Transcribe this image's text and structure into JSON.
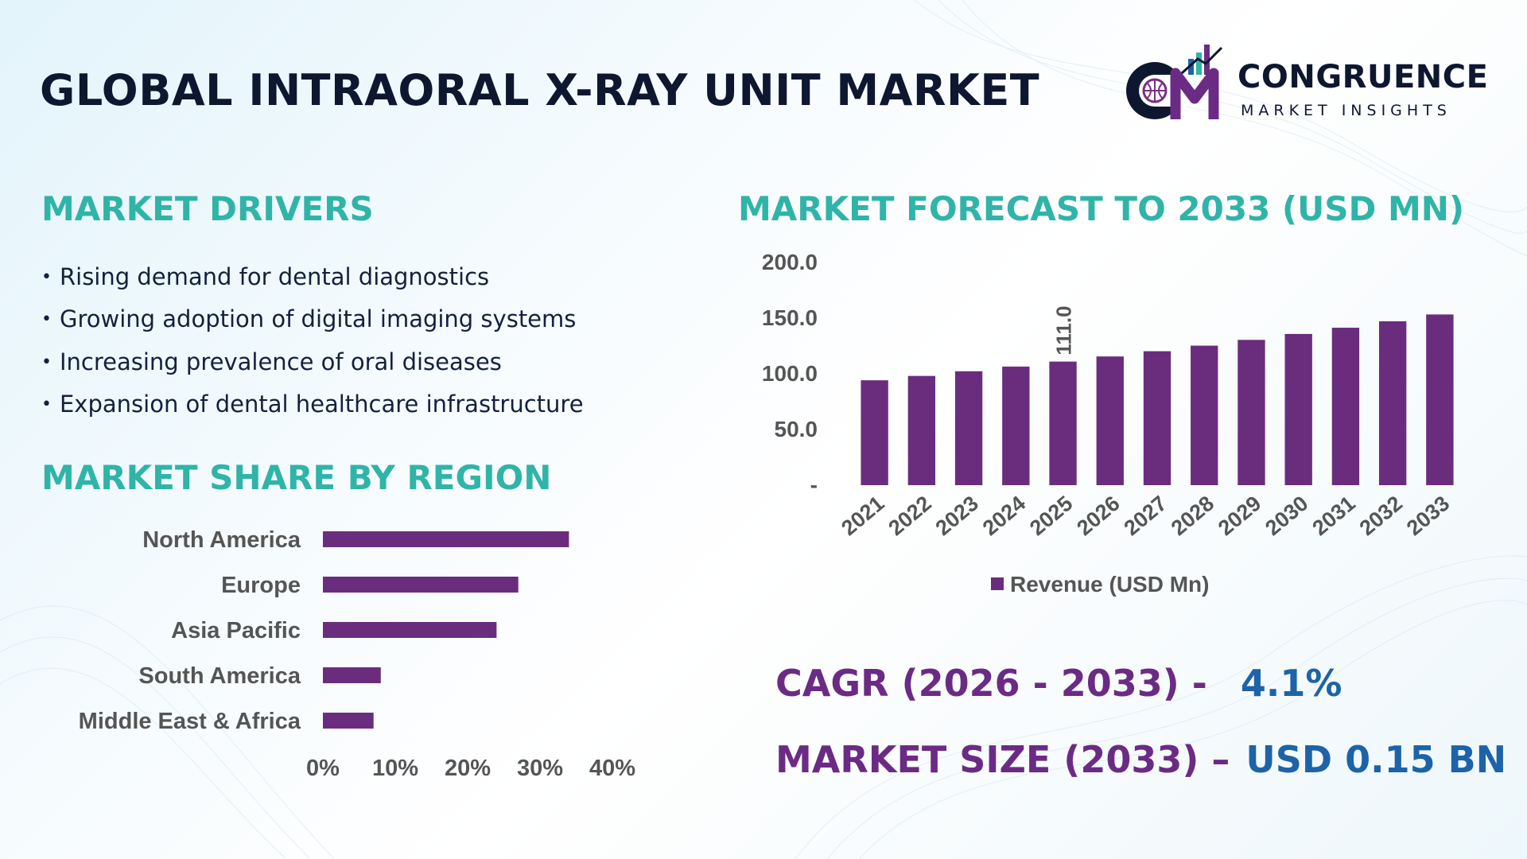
{
  "title": "GLOBAL INTRAORAL X-RAY UNIT MARKET",
  "logo": {
    "name": "CONGRUENCE",
    "tagline": "MARKET INSIGHTS",
    "mark": "CM"
  },
  "drivers": {
    "heading": "MARKET DRIVERS",
    "items": [
      "Rising demand for dental diagnostics",
      "Growing adoption of digital imaging systems",
      "Increasing prevalence of oral diseases",
      "Expansion of dental healthcare infrastructure"
    ]
  },
  "region": {
    "heading": "MARKET SHARE BY REGION"
  },
  "forecast": {
    "heading": "MARKET FORECAST TO 2033 (USD MN)"
  },
  "kpis": {
    "cagr_label": "CAGR (2026 - 2033) -",
    "cagr_value": "4.1%",
    "size_label": "MARKET SIZE (2033) –",
    "size_value": "USD 0.15 BN"
  },
  "colors": {
    "bar": "#6a2d7e",
    "heading": "#2fb4a8",
    "title": "#0d1730",
    "kpi_label": "#6b2b84",
    "kpi_value": "#1d63a8"
  },
  "chart_data": [
    {
      "type": "bar",
      "orientation": "vertical",
      "categories": [
        "2021",
        "2022",
        "2023",
        "2024",
        "2025",
        "2026",
        "2027",
        "2028",
        "2029",
        "2030",
        "2031",
        "2032",
        "2033"
      ],
      "series": [
        {
          "name": "Revenue (USD Mn)",
          "values": [
            94.2,
            98.1,
            102.3,
            106.5,
            111.0,
            115.6,
            120.3,
            125.3,
            130.5,
            135.8,
            141.4,
            147.2,
            153.3
          ]
        }
      ],
      "data_labels": [
        {
          "category": "2025",
          "text": "111.0"
        }
      ],
      "yticks": [
        "-",
        "50.0",
        "100.0",
        "150.0",
        "200.0"
      ],
      "ylim": [
        0,
        200
      ],
      "grid": false,
      "legend": "bottom"
    },
    {
      "type": "bar",
      "orientation": "horizontal",
      "categories": [
        "North America",
        "Europe",
        "Asia Pacific",
        "South America",
        "Middle East & Africa"
      ],
      "values": [
        34,
        27,
        24,
        8,
        7
      ],
      "unit": "%",
      "xticks": [
        "0%",
        "10%",
        "20%",
        "30%",
        "40%"
      ],
      "xlim": [
        0,
        40
      ],
      "grid": false
    }
  ]
}
